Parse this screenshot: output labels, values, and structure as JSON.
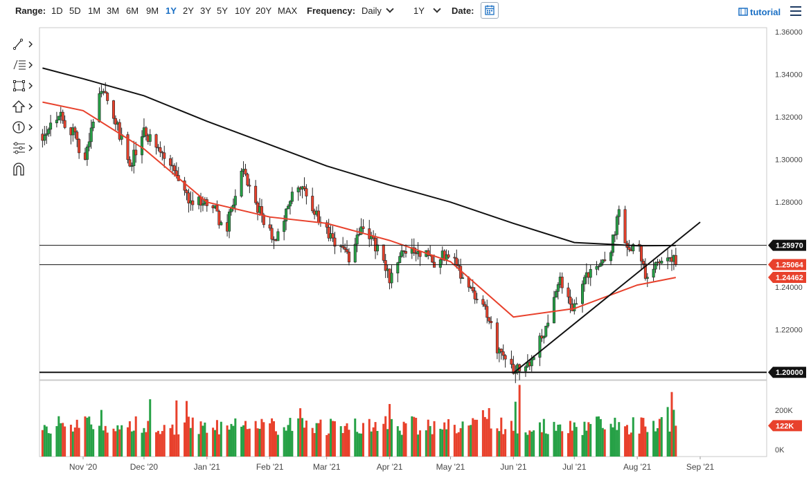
{
  "toolbar": {
    "range_label": "Range:",
    "ranges": [
      "1D",
      "5D",
      "1M",
      "3M",
      "6M",
      "9M",
      "1Y",
      "2Y",
      "3Y",
      "5Y",
      "10Y",
      "20Y",
      "MAX"
    ],
    "active_range": "1Y",
    "frequency_label": "Frequency:",
    "frequency_value": "Daily",
    "period_value": "1Y",
    "date_label": "Date:",
    "tutorial_label": "tutorial"
  },
  "side_tools": [
    "trendline-tool-icon",
    "fibonacci-tool-icon",
    "rectangle-tool-icon",
    "arrow-tool-icon",
    "counter-tool-icon",
    "pattern-tool-icon",
    "magnet-icon"
  ],
  "colors": {
    "up": "#26a146",
    "down": "#e8412c",
    "sma_long": "#111111",
    "sma_short": "#e8412c",
    "last_price_badge": "#e8412c",
    "level_badge": "#111111"
  },
  "chart_data": {
    "type": "candlestick",
    "x_ticks": [
      "Nov '20",
      "Dec '20",
      "Jan '21",
      "Feb '21",
      "Mar '21",
      "Apr '21",
      "May '21",
      "Jun '21",
      "Jul '21",
      "Aug '21",
      "Sep '21"
    ],
    "y_ticks": [
      "1.36000",
      "1.34000",
      "1.32000",
      "1.30000",
      "1.28000",
      "1.26000",
      "1.24000",
      "1.22000",
      "1.20000"
    ],
    "ylim": [
      1.1965,
      1.362
    ],
    "price_badges": [
      {
        "label": "1.25970",
        "value": 1.2597,
        "kind": "level"
      },
      {
        "label": "1.25064",
        "value": 1.25064,
        "kind": "last"
      },
      {
        "label": "1.24462",
        "value": 1.24462,
        "kind": "sma"
      },
      {
        "label": "1.20000",
        "value": 1.2,
        "kind": "level"
      }
    ],
    "horizontal_levels": [
      1.2597,
      1.2506,
      1.2
    ],
    "trendline": [
      {
        "x": "2021-06-01",
        "y": 1.1997
      },
      {
        "x": "2021-09-01",
        "y": 1.2706
      }
    ],
    "close_path": [
      {
        "x": "2020-10-12",
        "y": 1.312
      },
      {
        "x": "2020-10-20",
        "y": 1.322
      },
      {
        "x": "2020-10-27",
        "y": 1.312
      },
      {
        "x": "2020-11-02",
        "y": 1.3
      },
      {
        "x": "2020-11-10",
        "y": 1.335
      },
      {
        "x": "2020-11-16",
        "y": 1.32
      },
      {
        "x": "2020-11-24",
        "y": 1.298
      },
      {
        "x": "2020-12-01",
        "y": 1.312
      },
      {
        "x": "2020-12-08",
        "y": 1.305
      },
      {
        "x": "2020-12-15",
        "y": 1.295
      },
      {
        "x": "2020-12-23",
        "y": 1.282
      },
      {
        "x": "2021-01-04",
        "y": 1.278
      },
      {
        "x": "2021-01-10",
        "y": 1.265
      },
      {
        "x": "2021-01-18",
        "y": 1.295
      },
      {
        "x": "2021-01-26",
        "y": 1.277
      },
      {
        "x": "2021-02-04",
        "y": 1.262
      },
      {
        "x": "2021-02-12",
        "y": 1.283
      },
      {
        "x": "2021-02-19",
        "y": 1.285
      },
      {
        "x": "2021-02-26",
        "y": 1.268
      },
      {
        "x": "2021-03-05",
        "y": 1.262
      },
      {
        "x": "2021-03-12",
        "y": 1.254
      },
      {
        "x": "2021-03-18",
        "y": 1.27
      },
      {
        "x": "2021-03-24",
        "y": 1.262
      },
      {
        "x": "2021-04-01",
        "y": 1.244
      },
      {
        "x": "2021-04-07",
        "y": 1.255
      },
      {
        "x": "2021-04-15",
        "y": 1.258
      },
      {
        "x": "2021-04-23",
        "y": 1.252
      },
      {
        "x": "2021-05-01",
        "y": 1.257
      },
      {
        "x": "2021-05-06",
        "y": 1.247
      },
      {
        "x": "2021-05-13",
        "y": 1.237
      },
      {
        "x": "2021-05-20",
        "y": 1.226
      },
      {
        "x": "2021-05-25",
        "y": 1.208
      },
      {
        "x": "2021-06-01",
        "y": 1.202
      },
      {
        "x": "2021-06-09",
        "y": 1.206
      },
      {
        "x": "2021-06-16",
        "y": 1.219
      },
      {
        "x": "2021-06-23",
        "y": 1.244
      },
      {
        "x": "2021-06-30",
        "y": 1.23
      },
      {
        "x": "2021-07-07",
        "y": 1.246
      },
      {
        "x": "2021-07-13",
        "y": 1.25
      },
      {
        "x": "2021-07-19",
        "y": 1.258
      },
      {
        "x": "2021-07-23",
        "y": 1.276
      },
      {
        "x": "2021-07-26",
        "y": 1.258
      },
      {
        "x": "2021-08-02",
        "y": 1.258
      },
      {
        "x": "2021-08-06",
        "y": 1.242
      },
      {
        "x": "2021-08-10",
        "y": 1.253
      },
      {
        "x": "2021-08-16",
        "y": 1.256
      },
      {
        "x": "2021-08-20",
        "y": 1.25064
      }
    ],
    "sma_long": [
      {
        "x": "2020-10-12",
        "y": 1.343
      },
      {
        "x": "2020-11-01",
        "y": 1.338
      },
      {
        "x": "2020-12-01",
        "y": 1.33
      },
      {
        "x": "2021-01-01",
        "y": 1.318
      },
      {
        "x": "2021-02-01",
        "y": 1.307
      },
      {
        "x": "2021-03-01",
        "y": 1.297
      },
      {
        "x": "2021-04-01",
        "y": 1.288
      },
      {
        "x": "2021-05-01",
        "y": 1.28
      },
      {
        "x": "2021-06-01",
        "y": 1.27
      },
      {
        "x": "2021-07-01",
        "y": 1.261
      },
      {
        "x": "2021-08-01",
        "y": 1.2595
      },
      {
        "x": "2021-08-20",
        "y": 1.2596
      }
    ],
    "sma_short": [
      {
        "x": "2020-10-12",
        "y": 1.327
      },
      {
        "x": "2020-11-01",
        "y": 1.323
      },
      {
        "x": "2020-12-01",
        "y": 1.305
      },
      {
        "x": "2021-01-01",
        "y": 1.28
      },
      {
        "x": "2021-02-01",
        "y": 1.273
      },
      {
        "x": "2021-03-01",
        "y": 1.27
      },
      {
        "x": "2021-04-01",
        "y": 1.262
      },
      {
        "x": "2021-05-01",
        "y": 1.252
      },
      {
        "x": "2021-06-01",
        "y": 1.226
      },
      {
        "x": "2021-07-01",
        "y": 1.23
      },
      {
        "x": "2021-08-01",
        "y": 1.241
      },
      {
        "x": "2021-08-20",
        "y": 1.2446
      }
    ],
    "volume": {
      "y_ticks": [
        "200K",
        "0K"
      ],
      "last_label": "122K",
      "last_value": 122000,
      "max": 290000
    }
  }
}
